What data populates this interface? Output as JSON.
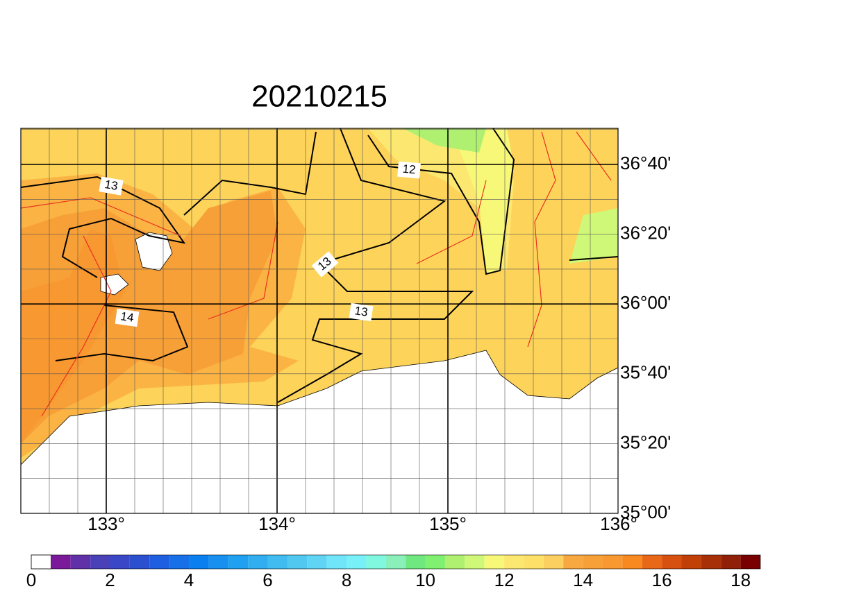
{
  "title": "20210215",
  "lon_labels": [
    "133°",
    "134°",
    "135°",
    "136°"
  ],
  "lat_labels": [
    "36°40'",
    "36°20'",
    "36°00'",
    "35°40'",
    "35°20'",
    "35°00'"
  ],
  "contour_labels": [
    "13",
    "12",
    "13",
    "13",
    "14"
  ],
  "colorbar": {
    "labels": [
      "0",
      "2",
      "4",
      "6",
      "8",
      "10",
      "12",
      "14",
      "16",
      "18"
    ],
    "colors": [
      "#ffffff",
      "#7a1a9a",
      "#6030a8",
      "#4a40b8",
      "#3a48c8",
      "#2a50d0",
      "#1e5ee0",
      "#1870e8",
      "#0a80f0",
      "#1890f0",
      "#20a0f0",
      "#30aef0",
      "#40bcf0",
      "#50c8f0",
      "#60d4f4",
      "#70e4f8",
      "#78f0f8",
      "#80f8e0",
      "#88f0b8",
      "#70e880",
      "#80f070",
      "#b0f070",
      "#d0f878",
      "#f8f878",
      "#fce870",
      "#fce068",
      "#fcd060",
      "#f8a840",
      "#f8a038",
      "#f89830",
      "#f88820",
      "#e86818",
      "#d85010",
      "#c04008",
      "#a83008",
      "#902008",
      "#780000"
    ]
  }
}
